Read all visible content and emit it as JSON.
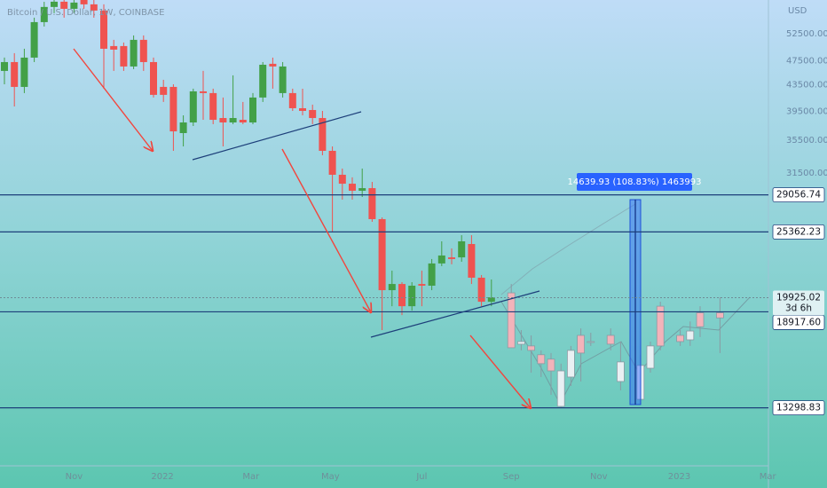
{
  "chart_data": {
    "type": "candlestick",
    "title": "Bitcoin / U.S. Dollar, 1W, COINBASE",
    "currency": "USD",
    "log": true,
    "ylim": [
      10750,
      59400
    ],
    "yticks": [
      {
        "value": 52500,
        "label": "52500.00"
      },
      {
        "value": 47500,
        "label": "47500.00"
      },
      {
        "value": 43500,
        "label": "43500.00"
      },
      {
        "value": 39500,
        "label": "39500.00"
      },
      {
        "value": 35500,
        "label": "35500.00"
      },
      {
        "value": 31500,
        "label": "31500.00"
      }
    ],
    "xticks": [
      {
        "value": 7,
        "label": "Nov"
      },
      {
        "value": 15.9,
        "label": "2022"
      },
      {
        "value": 24.8,
        "label": "Mar"
      },
      {
        "value": 32.8,
        "label": "May"
      },
      {
        "value": 42,
        "label": "Jul"
      },
      {
        "value": 51,
        "label": "Sep"
      },
      {
        "value": 59.8,
        "label": "Nov"
      },
      {
        "value": 67.9,
        "label": "2023"
      },
      {
        "value": 76.8,
        "label": "Mar"
      }
    ],
    "up_color": "#43a047",
    "down_color": "#ef5350",
    "candles": {
      "open": [
        45790,
        47300,
        43180,
        48080,
        54770,
        57900,
        59030,
        57510,
        59400,
        58460,
        57140,
        50160,
        50160,
        46540,
        51320,
        47300,
        43180,
        43180,
        36450,
        37900,
        42480,
        42210,
        38520,
        37900,
        38270,
        37900,
        41530,
        47000,
        42210,
        42210,
        39930,
        39670,
        38520,
        34150,
        31280,
        30270,
        29500,
        29780,
        26580,
        20480,
        20950,
        19310,
        20950,
        20820,
        22590,
        23100,
        23100,
        24260,
        21440,
        19630
      ],
      "high": [
        48080,
        48870,
        49670,
        55670,
        59000,
        59400,
        59400,
        59400,
        59400,
        59400,
        58460,
        51320,
        50820,
        52160,
        52160,
        48080,
        44320,
        43600,
        38900,
        42900,
        45790,
        42900,
        41530,
        45050,
        40860,
        42210,
        47300,
        48080,
        47300,
        42900,
        42900,
        40460,
        39540,
        34710,
        32000,
        30980,
        32000,
        30470,
        26750,
        22000,
        21090,
        21090,
        22000,
        22960,
        24500,
        23870,
        25060,
        25060,
        21650,
        21300
      ],
      "low": [
        43600,
        40190,
        42210,
        47300,
        53890,
        56590,
        55670,
        56590,
        57510,
        55670,
        42900,
        45790,
        45790,
        46090,
        45790,
        41530,
        40860,
        34150,
        34710,
        37410,
        38270,
        37660,
        34710,
        37660,
        37660,
        37660,
        40860,
        42900,
        41530,
        39540,
        38900,
        37660,
        33600,
        25310,
        28550,
        28550,
        28830,
        26320,
        17690,
        19310,
        18690,
        19000,
        19310,
        20480,
        22370,
        22520,
        22730,
        20950,
        19310,
        19310
      ],
      "close": [
        47300,
        43180,
        48080,
        54770,
        57900,
        59030,
        57510,
        58840,
        58460,
        57140,
        49670,
        49510,
        46540,
        51320,
        47300,
        41940,
        41940,
        36680,
        37900,
        42480,
        42210,
        38270,
        37900,
        38520,
        37900,
        41530,
        46840,
        46540,
        46540,
        39930,
        39540,
        38520,
        34150,
        31280,
        30270,
        29500,
        29780,
        26580,
        20480,
        20950,
        19310,
        20820,
        20820,
        22590,
        23260,
        22960,
        24500,
        21440,
        19630,
        19950
      ]
    },
    "projection": {
      "up_color": "#e9f0f3",
      "down_color": "#f3b3ba",
      "x": [
        51,
        52,
        53,
        54,
        55,
        56,
        57,
        58,
        59,
        61,
        62,
        64,
        65,
        66,
        68,
        69,
        70,
        72
      ],
      "open": [
        20280,
        16800,
        16690,
        16160,
        15900,
        13370,
        14890,
        17350,
        16960,
        17350,
        14650,
        13720,
        15380,
        19310,
        17350,
        17070,
        18850,
        18850
      ],
      "high": [
        20950,
        17690,
        17350,
        16420,
        16260,
        15640,
        16690,
        17800,
        17520,
        17800,
        16960,
        16160,
        16960,
        19630,
        17690,
        18260,
        19310,
        19950
      ],
      "low": [
        16580,
        16420,
        15130,
        14890,
        13950,
        13280,
        14410,
        14650,
        16690,
        16420,
        14180,
        13500,
        15130,
        16420,
        16690,
        16690,
        17240,
        16260
      ],
      "close": [
        16580,
        16960,
        16420,
        15640,
        15230,
        15230,
        16420,
        16260,
        16960,
        16800,
        15740,
        15540,
        16690,
        16690,
        16960,
        17630,
        17910,
        18500
      ]
    },
    "hlines": [
      29056.74,
      25362.23,
      {
        "value": 18917.6,
        "label": "18917.60"
      },
      13298.83
    ],
    "current_price": 19925.02,
    "countdown": "3d 6h",
    "measure": {
      "from": 13460,
      "to": 28550,
      "label": "14639.93 (108.83%) 1463993"
    }
  }
}
